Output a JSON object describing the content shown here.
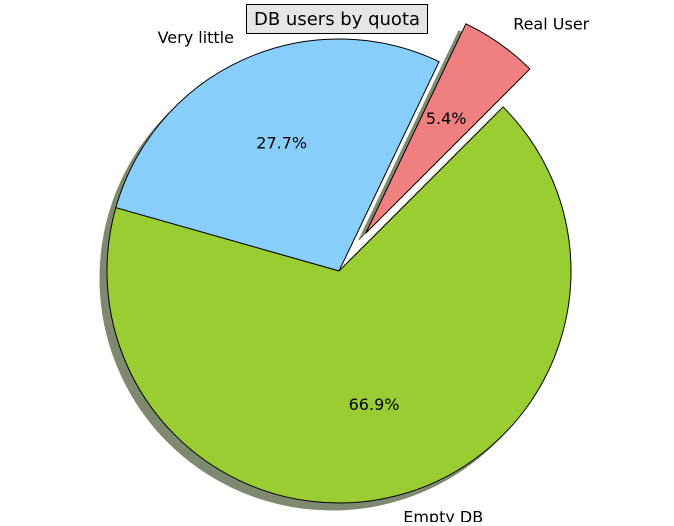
{
  "chart_data": {
    "type": "pie",
    "title": "DB users by quota",
    "slices": [
      {
        "label": "Real User",
        "value": 5.4,
        "pct_label": "5.4%",
        "color": "#f08080",
        "exploded": true
      },
      {
        "label": "Very little",
        "value": 27.7,
        "pct_label": "27.7%",
        "color": "#87cefa",
        "exploded": false
      },
      {
        "label": "Empty DB",
        "value": 66.9,
        "pct_label": "66.9%",
        "color": "#9acd32",
        "exploded": false
      }
    ],
    "start_angle_deg": 45,
    "direction": "counterclockwise",
    "shadow": true,
    "shadow_color": "#7f8970"
  }
}
